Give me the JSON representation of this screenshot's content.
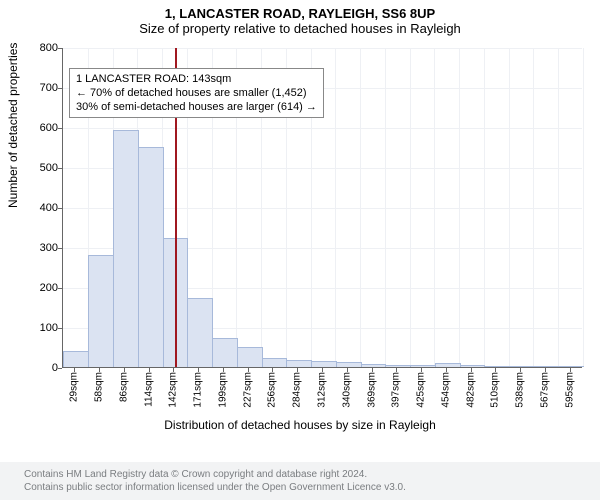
{
  "header": {
    "address": "1, LANCASTER ROAD, RAYLEIGH, SS6 8UP",
    "subtitle": "Size of property relative to detached houses in Rayleigh"
  },
  "chart": {
    "type": "histogram",
    "background_color": "#ffffff",
    "grid_color": "#eef0f4",
    "axis_color": "#666666",
    "bar_fill": "#dbe3f2",
    "bar_stroke": "#a7b9da",
    "marker": {
      "value_sqm": 143,
      "color": "#a01820"
    },
    "annotation": {
      "line1": "1 LANCASTER ROAD: 143sqm",
      "line2": "← 70% of detached houses are smaller (1,452)",
      "line3": "30% of semi-detached houses are larger (614) →",
      "fontsize": 11
    },
    "ylabel": "Number of detached properties",
    "xlabel": "Distribution of detached houses by size in Rayleigh",
    "ylim": [
      0,
      800
    ],
    "ytick_step": 100,
    "label_fontsize": 12,
    "tick_fontsize": 11,
    "xtick_fontsize": 10,
    "bins": [
      {
        "label": "29sqm",
        "count": 38
      },
      {
        "label": "58sqm",
        "count": 278
      },
      {
        "label": "86sqm",
        "count": 590
      },
      {
        "label": "114sqm",
        "count": 548
      },
      {
        "label": "142sqm",
        "count": 320
      },
      {
        "label": "171sqm",
        "count": 170
      },
      {
        "label": "199sqm",
        "count": 70
      },
      {
        "label": "227sqm",
        "count": 48
      },
      {
        "label": "256sqm",
        "count": 20
      },
      {
        "label": "284sqm",
        "count": 15
      },
      {
        "label": "312sqm",
        "count": 12
      },
      {
        "label": "340sqm",
        "count": 10
      },
      {
        "label": "369sqm",
        "count": 4
      },
      {
        "label": "397sqm",
        "count": 2
      },
      {
        "label": "425sqm",
        "count": 2
      },
      {
        "label": "454sqm",
        "count": 8
      },
      {
        "label": "482sqm",
        "count": 2
      },
      {
        "label": "510sqm",
        "count": 1
      },
      {
        "label": "538sqm",
        "count": 0
      },
      {
        "label": "567sqm",
        "count": 0
      },
      {
        "label": "595sqm",
        "count": 0
      }
    ]
  },
  "footer": {
    "line1": "Contains HM Land Registry data © Crown copyright and database right 2024.",
    "line2": "Contains public sector information licensed under the Open Government Licence v3.0."
  }
}
